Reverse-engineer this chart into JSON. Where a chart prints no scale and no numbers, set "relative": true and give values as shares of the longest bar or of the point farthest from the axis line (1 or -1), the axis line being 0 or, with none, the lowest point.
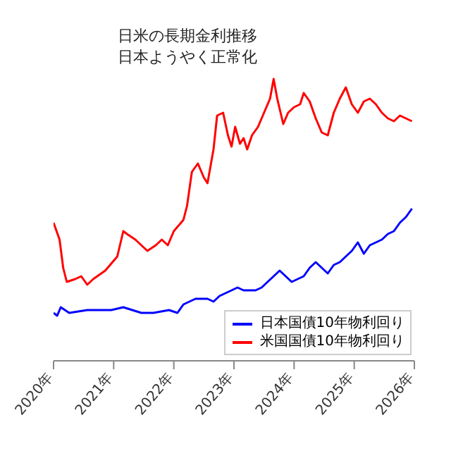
{
  "chart_data": {
    "type": "line",
    "title": "日米の長期金利推移",
    "subtitle": "日本ようやく正常化",
    "relative": true,
    "legend": "bottom right",
    "xlim": [
      2020,
      2026
    ],
    "xticks": [
      {
        "value": 2020,
        "label": "2020年"
      },
      {
        "value": 2021,
        "label": "2021年"
      },
      {
        "value": 2022,
        "label": "2022年"
      },
      {
        "value": 2023,
        "label": "2023年"
      },
      {
        "value": 2024,
        "label": "2024年"
      },
      {
        "value": 2025,
        "label": "2025年"
      },
      {
        "value": 2026,
        "label": "2026年"
      }
    ],
    "series": [
      {
        "name": "日本国債10年物利回り",
        "color": "#0000ff",
        "x": [
          2020.0,
          2020.06,
          2020.12,
          2020.26,
          2020.56,
          2020.96,
          2021.16,
          2021.46,
          2021.66,
          2021.92,
          2022.06,
          2022.16,
          2022.36,
          2022.56,
          2022.66,
          2022.76,
          2022.96,
          2023.06,
          2023.16,
          2023.26,
          2023.36,
          2023.46,
          2023.56,
          2023.66,
          2023.76,
          2023.86,
          2023.96,
          2024.06,
          2024.16,
          2024.26,
          2024.36,
          2024.46,
          2024.56,
          2024.66,
          2024.76,
          2024.86,
          2024.96,
          2025.06,
          2025.16,
          2025.26,
          2025.36,
          2025.46,
          2025.56,
          2025.66,
          2025.76,
          2025.86,
          2025.96
        ],
        "values": [
          0.17,
          0.16,
          0.19,
          0.17,
          0.18,
          0.18,
          0.19,
          0.17,
          0.17,
          0.18,
          0.17,
          0.2,
          0.22,
          0.22,
          0.21,
          0.23,
          0.25,
          0.26,
          0.25,
          0.25,
          0.25,
          0.26,
          0.28,
          0.3,
          0.32,
          0.3,
          0.28,
          0.29,
          0.3,
          0.33,
          0.35,
          0.33,
          0.31,
          0.34,
          0.35,
          0.37,
          0.39,
          0.42,
          0.38,
          0.41,
          0.42,
          0.43,
          0.45,
          0.46,
          0.49,
          0.51,
          0.54
        ]
      },
      {
        "name": "米国国債10年物利回り",
        "color": "#ff0000",
        "x": [
          2020.0,
          2020.1,
          2020.16,
          2020.22,
          2020.36,
          2020.46,
          2020.56,
          2020.66,
          2020.86,
          2021.06,
          2021.16,
          2021.22,
          2021.36,
          2021.56,
          2021.7,
          2021.8,
          2021.9,
          2022.0,
          2022.16,
          2022.22,
          2022.3,
          2022.4,
          2022.5,
          2022.56,
          2022.66,
          2022.72,
          2022.82,
          2022.9,
          2022.96,
          2023.02,
          2023.1,
          2023.16,
          2023.22,
          2023.3,
          2023.4,
          2023.5,
          2023.6,
          2023.66,
          2023.72,
          2023.82,
          2023.9,
          2024.0,
          2024.1,
          2024.16,
          2024.26,
          2024.36,
          2024.46,
          2024.56,
          2024.66,
          2024.76,
          2024.86,
          2024.96,
          2025.06,
          2025.16,
          2025.26,
          2025.36,
          2025.46,
          2025.56,
          2025.66,
          2025.76,
          2025.86,
          2025.96
        ],
        "values": [
          0.49,
          0.43,
          0.33,
          0.28,
          0.29,
          0.3,
          0.27,
          0.29,
          0.32,
          0.37,
          0.46,
          0.45,
          0.43,
          0.39,
          0.41,
          0.43,
          0.41,
          0.46,
          0.5,
          0.55,
          0.67,
          0.7,
          0.65,
          0.63,
          0.75,
          0.87,
          0.88,
          0.8,
          0.76,
          0.83,
          0.77,
          0.79,
          0.75,
          0.8,
          0.83,
          0.88,
          0.93,
          1.0,
          0.93,
          0.84,
          0.88,
          0.9,
          0.91,
          0.95,
          0.92,
          0.86,
          0.81,
          0.8,
          0.88,
          0.93,
          0.97,
          0.91,
          0.88,
          0.92,
          0.93,
          0.91,
          0.88,
          0.86,
          0.85,
          0.87,
          0.86,
          0.85
        ]
      }
    ]
  }
}
